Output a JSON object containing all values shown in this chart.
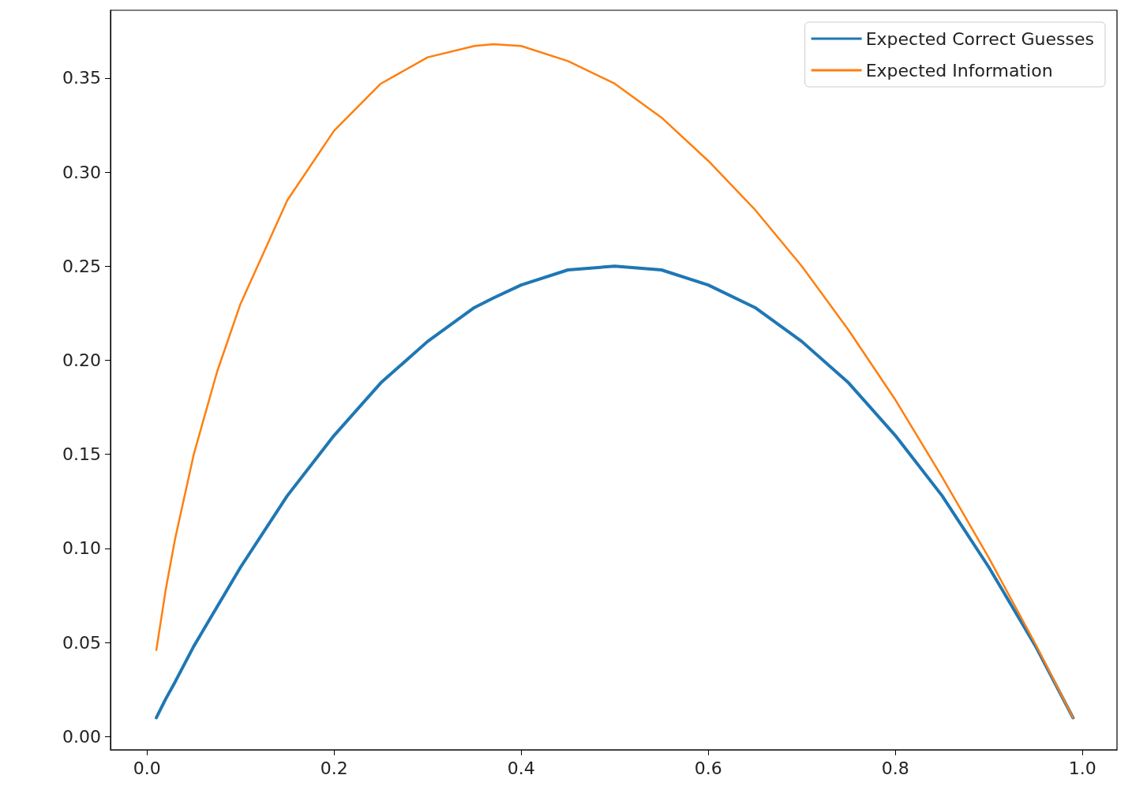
{
  "chart_data": {
    "type": "line",
    "x": [
      0.01,
      0.02,
      0.03,
      0.05,
      0.075,
      0.1,
      0.15,
      0.2,
      0.25,
      0.3,
      0.35,
      0.37,
      0.4,
      0.45,
      0.5,
      0.55,
      0.6,
      0.65,
      0.7,
      0.75,
      0.8,
      0.85,
      0.9,
      0.95,
      0.99
    ],
    "series": [
      {
        "name": "Expected Correct Guesses",
        "color": "#1f77b4",
        "values": [
          0.01,
          0.02,
          0.029,
          0.048,
          0.069,
          0.09,
          0.128,
          0.16,
          0.188,
          0.21,
          0.228,
          0.233,
          0.24,
          0.248,
          0.25,
          0.248,
          0.24,
          0.228,
          0.21,
          0.188,
          0.16,
          0.128,
          0.09,
          0.048,
          0.01
        ]
      },
      {
        "name": "Expected Information",
        "color": "#ff7f0e",
        "values": [
          0.046,
          0.078,
          0.105,
          0.15,
          0.194,
          0.23,
          0.285,
          0.322,
          0.347,
          0.361,
          0.367,
          0.368,
          0.367,
          0.359,
          0.347,
          0.329,
          0.306,
          0.28,
          0.25,
          0.216,
          0.179,
          0.138,
          0.095,
          0.049,
          0.01
        ]
      }
    ],
    "xlim": [
      -0.039,
      1.037
    ],
    "ylim": [
      -0.007,
      0.386
    ],
    "xticks": [
      {
        "value": 0,
        "label": "0.0"
      },
      {
        "value": 0.2,
        "label": "0.2"
      },
      {
        "value": 0.4,
        "label": "0.4"
      },
      {
        "value": 0.6,
        "label": "0.6"
      },
      {
        "value": 0.8,
        "label": "0.8"
      },
      {
        "value": 1,
        "label": "1.0"
      }
    ],
    "yticks": [
      {
        "value": 0,
        "label": "0.00"
      },
      {
        "value": 0.05,
        "label": "0.05"
      },
      {
        "value": 0.1,
        "label": "0.10"
      },
      {
        "value": 0.15,
        "label": "0.15"
      },
      {
        "value": 0.2,
        "label": "0.20"
      },
      {
        "value": 0.25,
        "label": "0.25"
      },
      {
        "value": 0.3,
        "label": "0.30"
      },
      {
        "value": 0.35,
        "label": "0.35"
      }
    ],
    "grid": false,
    "legend": "top right",
    "marker": "none",
    "line_style": "solid"
  }
}
